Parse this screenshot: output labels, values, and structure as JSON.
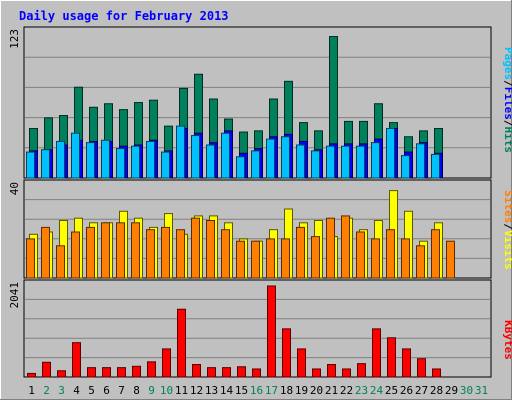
{
  "chart_data": [
    {
      "type": "bar",
      "title": "Daily usage for February 2013",
      "panel": "Pages / Files / Hits",
      "ymax_label": "123",
      "ylim": [
        0,
        123
      ],
      "categories": [
        "1",
        "2",
        "3",
        "4",
        "5",
        "6",
        "7",
        "8",
        "9",
        "10",
        "11",
        "12",
        "13",
        "14",
        "15",
        "16",
        "17",
        "18",
        "19",
        "20",
        "21",
        "22",
        "23",
        "24",
        "25",
        "26",
        "27",
        "28",
        "29",
        "30",
        "31"
      ],
      "weekend_days": [
        "2",
        "3",
        "9",
        "10",
        "16",
        "17",
        "23",
        "24",
        "30",
        "31"
      ],
      "series": [
        {
          "name": "Hits",
          "color": "#00805c",
          "values": [
            42,
            51,
            53,
            77,
            60,
            63,
            58,
            64,
            66,
            44,
            76,
            88,
            67,
            50,
            39,
            40,
            67,
            82,
            47,
            40,
            120,
            48,
            48,
            63,
            47,
            35,
            40,
            42,
            0,
            0,
            0
          ]
        },
        {
          "name": "Files",
          "color": "#0000ff",
          "values": [
            23,
            24,
            28,
            32,
            31,
            31,
            27,
            28,
            32,
            23,
            42,
            38,
            30,
            40,
            21,
            25,
            35,
            37,
            31,
            24,
            29,
            29,
            29,
            33,
            42,
            22,
            30,
            21,
            0,
            0,
            0
          ]
        },
        {
          "name": "Pages",
          "color": "#00c0ff",
          "values": [
            22,
            24,
            31,
            38,
            30,
            32,
            25,
            27,
            31,
            22,
            44,
            36,
            28,
            38,
            18,
            23,
            33,
            35,
            28,
            23,
            27,
            27,
            27,
            30,
            42,
            19,
            29,
            20,
            0,
            0,
            0
          ]
        }
      ]
    },
    {
      "type": "bar",
      "panel": "Sites / Visits",
      "ymax_label": "40",
      "ylim": [
        0,
        40
      ],
      "categories": [
        "1",
        "2",
        "3",
        "4",
        "5",
        "6",
        "7",
        "8",
        "9",
        "10",
        "11",
        "12",
        "13",
        "14",
        "15",
        "16",
        "17",
        "18",
        "19",
        "20",
        "21",
        "22",
        "23",
        "24",
        "25",
        "26",
        "27",
        "28",
        "29",
        "30",
        "31"
      ],
      "series": [
        {
          "name": "Visits",
          "color": "#ffff00",
          "values": [
            19,
            20,
            25,
            26,
            24,
            24,
            29,
            26,
            22,
            28,
            19,
            27,
            27,
            24,
            17,
            16,
            21,
            30,
            24,
            25,
            18,
            26,
            21,
            25,
            38,
            29,
            16,
            24,
            0,
            0,
            0
          ]
        },
        {
          "name": "Sites",
          "color": "#ff8000",
          "values": [
            17,
            22,
            14,
            20,
            22,
            24,
            24,
            24,
            21,
            22,
            21,
            26,
            25,
            21,
            16,
            16,
            17,
            17,
            22,
            18,
            26,
            27,
            20,
            17,
            21,
            17,
            14,
            21,
            16,
            0,
            0
          ]
        }
      ]
    },
    {
      "type": "bar",
      "panel": "KBytes",
      "ymax_label": "2041",
      "ylim": [
        0,
        2041
      ],
      "categories": [
        "1",
        "2",
        "3",
        "4",
        "5",
        "6",
        "7",
        "8",
        "9",
        "10",
        "11",
        "12",
        "13",
        "14",
        "15",
        "16",
        "17",
        "18",
        "19",
        "20",
        "21",
        "22",
        "23",
        "24",
        "25",
        "26",
        "27",
        "28",
        "29",
        "30",
        "31"
      ],
      "series": [
        {
          "name": "KBytes",
          "color": "#ff0000",
          "values": [
            80,
            330,
            140,
            770,
            210,
            210,
            210,
            240,
            340,
            630,
            1520,
            280,
            210,
            210,
            230,
            180,
            2041,
            1080,
            630,
            180,
            280,
            180,
            300,
            1080,
            880,
            630,
            410,
            180,
            0,
            0,
            0
          ]
        }
      ]
    }
  ]
}
